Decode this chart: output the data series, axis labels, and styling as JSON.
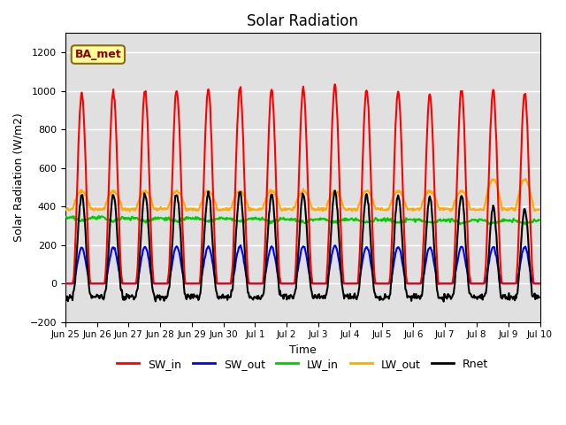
{
  "title": "Solar Radiation",
  "xlabel": "Time",
  "ylabel": "Solar Radiation (W/m2)",
  "ylim": [
    -200,
    1300
  ],
  "yticks": [
    -200,
    0,
    200,
    400,
    600,
    800,
    1000,
    1200
  ],
  "annotation": "BA_met",
  "bg_color": "#e0e0e0",
  "grid_color": "#ffffff",
  "colors": {
    "SW_in": "#ff0000",
    "SW_out": "#0000ff",
    "LW_in": "#00cc00",
    "LW_out": "#ffaa00",
    "Rnet": "#000000"
  },
  "linewidths": {
    "SW_in": 1.5,
    "SW_out": 1.5,
    "LW_in": 1.5,
    "LW_out": 1.5,
    "Rnet": 1.5
  },
  "n_days": 15,
  "dt_minutes": 30,
  "legend_labels": [
    "SW_in",
    "SW_out",
    "LW_in",
    "LW_out",
    "Rnet"
  ],
  "xtick_labels": [
    "Jun 25",
    "Jun 26",
    "Jun 27",
    "Jun 28",
    "Jun 29",
    "Jun 30",
    "Jul 1",
    "Jul 2",
    "Jul 3",
    "Jul 4",
    "Jul 5",
    "Jul 6",
    "Jul 7",
    "Jul 8",
    "Jul 9",
    "Jul 10"
  ]
}
